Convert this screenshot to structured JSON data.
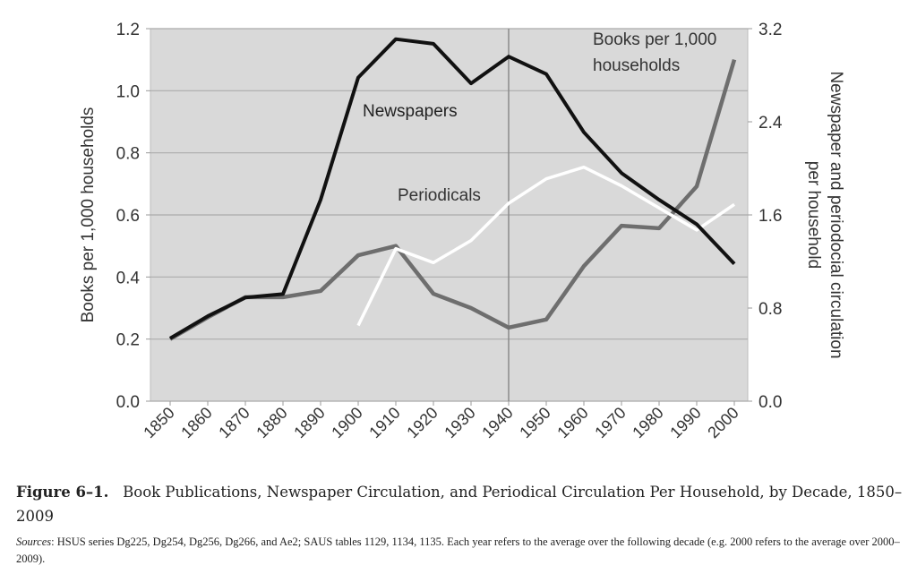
{
  "chart_data": {
    "type": "line",
    "title": "Book Publications, Newspaper Circulation, and Periodical Circulation Per Household, by Decade, 1850–2009",
    "x": [
      1850,
      1860,
      1870,
      1880,
      1890,
      1900,
      1910,
      1920,
      1930,
      1940,
      1950,
      1960,
      1970,
      1980,
      1990,
      2000
    ],
    "x_tick_labels": [
      "1850",
      "1860",
      "1870",
      "1880",
      "1890",
      "1900",
      "1910",
      "1920",
      "1930",
      "1940",
      "1950",
      "1960",
      "1970",
      "1980",
      "1990",
      "2000"
    ],
    "ylabel": "Books per 1,000 households",
    "ylabel_right": [
      "Newspaper and periodocial circulation",
      "per household"
    ],
    "ylim": [
      0,
      1.2
    ],
    "ylim_right": [
      0,
      3.2
    ],
    "y_ticks": [
      "0.0",
      "0.2",
      "0.4",
      "0.6",
      "0.8",
      "1.0",
      "1.2"
    ],
    "y_ticks_right": [
      "0.0",
      "0.8",
      "1.6",
      "2.4",
      "3.2"
    ],
    "grid": "horizontal",
    "reference_line_x": 1940,
    "series": [
      {
        "name": "Newspapers",
        "axis": "right",
        "color": "#111111",
        "values": [
          0.54,
          0.73,
          0.89,
          0.92,
          1.73,
          2.78,
          3.11,
          3.07,
          2.73,
          2.96,
          2.81,
          2.31,
          1.96,
          1.73,
          1.52,
          1.18
        ]
      },
      {
        "name": "Periodicals",
        "axis": "right",
        "color": "#ffffff",
        "values": [
          null,
          null,
          null,
          null,
          null,
          0.65,
          1.31,
          1.19,
          1.38,
          1.7,
          1.91,
          2.01,
          1.85,
          1.66,
          1.47,
          1.69
        ]
      },
      {
        "name": "Books per 1,000 households",
        "name_lines": [
          "Books per 1,000",
          "households"
        ],
        "axis": "left",
        "color": "#6e6e6e",
        "values": [
          0.2,
          0.27,
          0.335,
          0.335,
          0.355,
          0.47,
          0.5,
          0.346,
          0.3,
          0.237,
          0.263,
          0.435,
          0.565,
          0.557,
          0.692,
          1.1
        ]
      }
    ],
    "plot_background": "#d9d9d9"
  },
  "caption": {
    "label": "Figure 6–1.",
    "text": "Book Publications, Newspaper Circulation, and Periodical Circulation Per Household, by Decade, 1850–2009",
    "sources_label": "Sources",
    "sources_text": ": HSUS series Dg225, Dg254, Dg256, Dg266, and Ae2; SAUS tables 1129, 1134, 1135. Each year refers to the average over the following decade (e.g. 2000 refers to the average over 2000–2009)."
  }
}
